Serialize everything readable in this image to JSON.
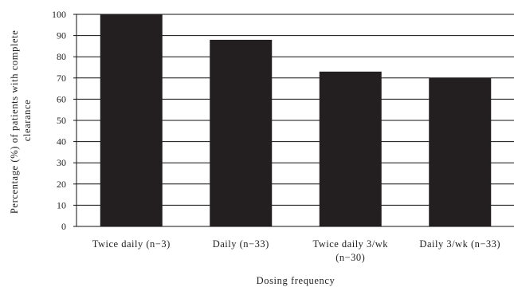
{
  "chart_data": {
    "type": "bar",
    "title": "",
    "xlabel": "Dosing frequency",
    "ylabel_lines": [
      "Percentage (%) of patients with complete",
      "clearance"
    ],
    "categories": [
      [
        "Twice daily (n−3)"
      ],
      [
        "Daily (n−33)"
      ],
      [
        "Twice daily 3/wk",
        "(n−30)"
      ],
      [
        "Daily 3/wk (n−33)"
      ]
    ],
    "values": [
      100,
      88,
      73,
      70
    ],
    "ylim": [
      0,
      100
    ],
    "yticks": [
      0,
      10,
      20,
      30,
      40,
      50,
      60,
      70,
      80,
      90,
      100
    ],
    "grid": true,
    "legend": "none",
    "bar_color": "#231f20",
    "grid_color": "#111111"
  }
}
